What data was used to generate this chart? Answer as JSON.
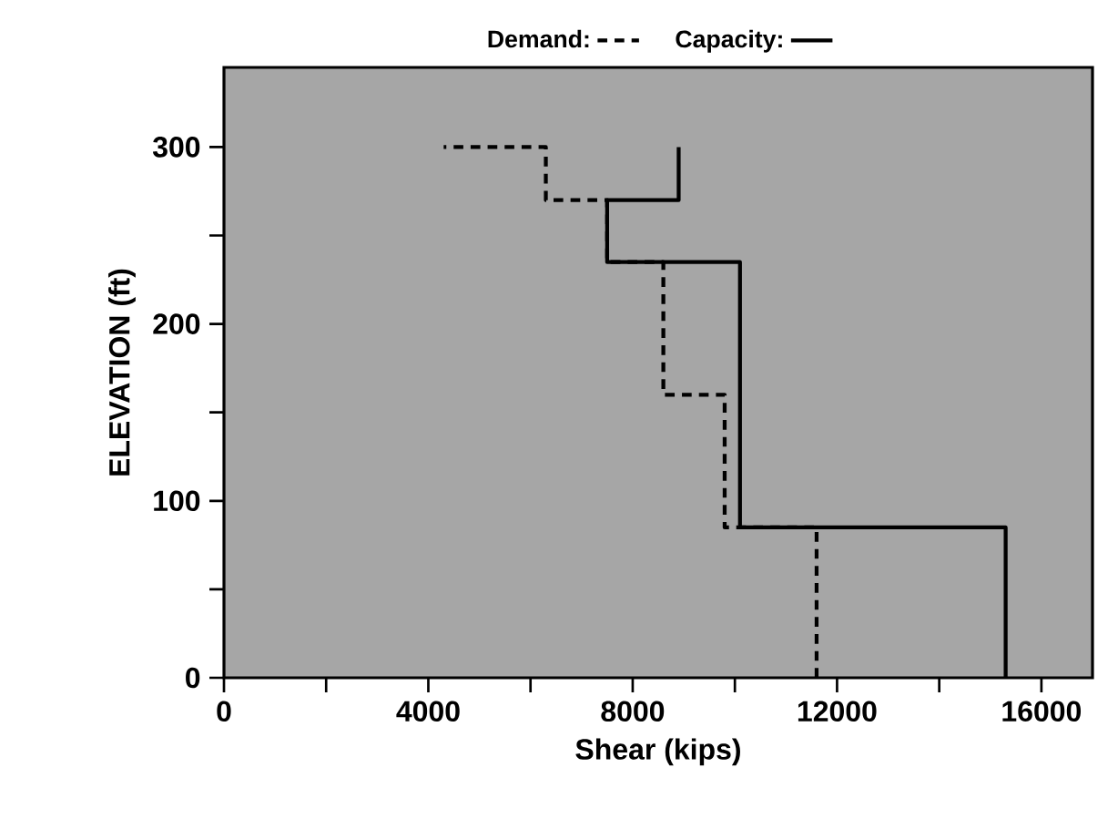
{
  "chart_data": {
    "type": "line",
    "xlabel": "Shear (kips)",
    "ylabel": "ELEVATION (ft)",
    "xlim": [
      0,
      17000
    ],
    "ylim": [
      0,
      345
    ],
    "xticks": [
      0,
      {
        "value": 2000,
        "label": null
      },
      4000,
      {
        "value": 6000,
        "label": null
      },
      8000,
      {
        "value": 10000,
        "label": null
      },
      12000,
      {
        "value": 14000,
        "label": null
      },
      16000
    ],
    "yticks": [
      0,
      {
        "value": 50,
        "label": null
      },
      100,
      {
        "value": 150,
        "label": null
      },
      200,
      {
        "value": 250,
        "label": null
      },
      300
    ],
    "legend": "top",
    "grid": false,
    "marker": "none",
    "series": [
      {
        "name": "Demand:",
        "color": "#000000",
        "line_style": "dashed",
        "x": [
          11600,
          11600,
          9800,
          9800,
          8600,
          8600,
          7500,
          7500,
          6300,
          6300,
          4300
        ],
        "values": [
          0,
          85,
          85,
          160,
          160,
          235,
          235,
          270,
          270,
          300,
          300
        ]
      },
      {
        "name": "Capacity:",
        "color": "#000000",
        "line_style": "solid",
        "x": [
          15300,
          15300,
          10100,
          10100,
          7500,
          7500,
          8900,
          8900
        ],
        "values": [
          0,
          85,
          85,
          235,
          235,
          270,
          270,
          300
        ]
      }
    ]
  }
}
